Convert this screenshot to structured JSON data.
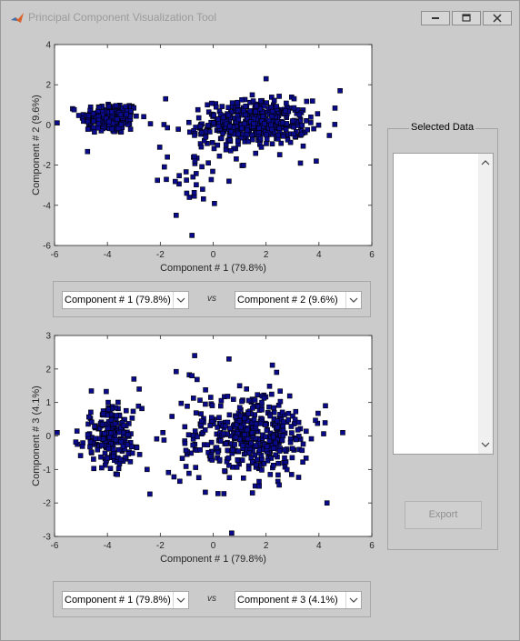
{
  "window": {
    "title": "Principal Component Visualization Tool",
    "icons": {
      "app": "matlab-logo-icon",
      "minimize": "minimize-icon",
      "maximize": "maximize-icon",
      "close": "close-icon"
    }
  },
  "colors": {
    "marker_fill": "#0a0a8c",
    "marker_edge": "#000000",
    "panel_bg": "#cbcbcb",
    "axes_bg": "#ffffff"
  },
  "top_controls": {
    "x_select": {
      "selected": "Component # 1 (79.8%)"
    },
    "vs_label": "vs",
    "y_select": {
      "selected": "Component # 2 (9.6%)"
    }
  },
  "bottom_controls": {
    "x_select": {
      "selected": "Component # 1 (79.8%)"
    },
    "vs_label": "vs",
    "y_select": {
      "selected": "Component # 3 (4.1%)"
    }
  },
  "selected_data": {
    "title": "Selected Data",
    "export_label": "Export",
    "export_enabled": false
  },
  "chart_data": [
    {
      "type": "scatter",
      "xlabel": "Component # 1 (79.8%)",
      "ylabel": "Component # 2 (9.6%)",
      "xlim": [
        -6,
        6
      ],
      "ylim": [
        -6,
        4
      ],
      "xticks": [
        "-6",
        "-4",
        "-2",
        "0",
        "2",
        "4",
        "6"
      ],
      "yticks": [
        "4",
        "2",
        "0",
        "-2",
        "-4",
        "-6"
      ],
      "marker": "square",
      "clusters": [
        {
          "center": [
            -3.9,
            0.35
          ],
          "spread": [
            0.55,
            0.4
          ],
          "count": 210
        },
        {
          "center": [
            1.6,
            0.1
          ],
          "spread": [
            1.0,
            0.55
          ],
          "count": 420
        },
        {
          "center": [
            -0.6,
            -1.8
          ],
          "spread": [
            0.6,
            1.1
          ],
          "count": 45
        }
      ],
      "points": [
        [
          -0.8,
          -5.5
        ],
        [
          -1.4,
          -4.5
        ],
        [
          2.0,
          2.3
        ],
        [
          4.8,
          1.7
        ],
        [
          -5.9,
          0.1
        ],
        [
          -1.8,
          1.3
        ],
        [
          3.9,
          -1.8
        ],
        [
          3.3,
          -1.9
        ],
        [
          0.6,
          -2.8
        ],
        [
          -0.9,
          -3.6
        ],
        [
          -1.0,
          -3.4
        ],
        [
          -0.4,
          -3.2
        ]
      ]
    },
    {
      "type": "scatter",
      "xlabel": "Component # 1 (79.8%)",
      "ylabel": "Component # 3 (4.1%)",
      "xlim": [
        -6,
        6
      ],
      "ylim": [
        -3,
        3
      ],
      "xticks": [
        "-6",
        "-4",
        "-2",
        "0",
        "2",
        "4",
        "6"
      ],
      "yticks": [
        "3",
        "2",
        "1",
        "0",
        "-1",
        "-2",
        "-3"
      ],
      "marker": "square",
      "clusters": [
        {
          "center": [
            -3.9,
            -0.05
          ],
          "spread": [
            0.55,
            0.45
          ],
          "count": 210
        },
        {
          "center": [
            1.6,
            0.0
          ],
          "spread": [
            1.0,
            0.6
          ],
          "count": 420
        },
        {
          "center": [
            -0.6,
            0.0
          ],
          "spread": [
            0.7,
            0.8
          ],
          "count": 45
        }
      ],
      "points": [
        [
          -0.7,
          2.4
        ],
        [
          0.6,
          2.3
        ],
        [
          0.7,
          -2.9
        ],
        [
          -0.8,
          1.8
        ],
        [
          -2.8,
          1.4
        ],
        [
          -3.0,
          1.7
        ],
        [
          2.4,
          1.9
        ],
        [
          1.0,
          1.5
        ],
        [
          4.9,
          0.1
        ],
        [
          -5.9,
          0.1
        ],
        [
          -2.5,
          -1.0
        ],
        [
          -1.9,
          0.1
        ]
      ]
    }
  ]
}
